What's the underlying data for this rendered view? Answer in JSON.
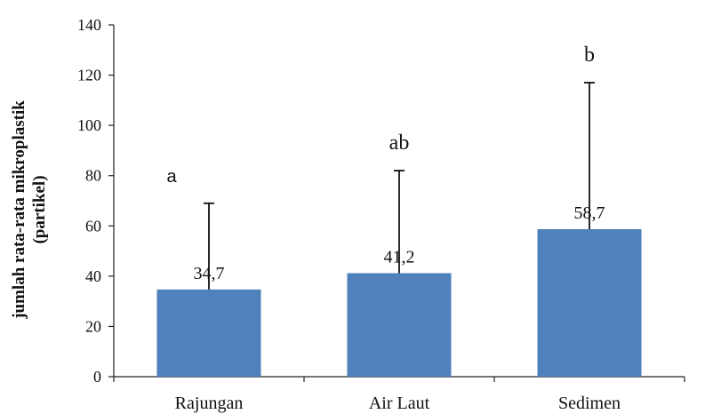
{
  "chart_data": {
    "type": "bar",
    "categories": [
      "Rajungan",
      "Air Laut",
      "Sedimen"
    ],
    "values": [
      34.7,
      41.2,
      58.7
    ],
    "value_labels": [
      "34,7",
      "41,2",
      "58,7"
    ],
    "error_upper": [
      69,
      82,
      117
    ],
    "significance_letters": [
      "a",
      "ab",
      "b"
    ],
    "ylabel": "jumlah rata-rata mikroplastik (partikel)",
    "ylim": [
      0,
      140
    ],
    "yticks": [
      0,
      20,
      40,
      60,
      80,
      100,
      120,
      140
    ],
    "grid": false,
    "legend": "none",
    "colors": {
      "bar": "#4f81bd",
      "axis": "#222222",
      "error_bar": "#111111"
    }
  }
}
